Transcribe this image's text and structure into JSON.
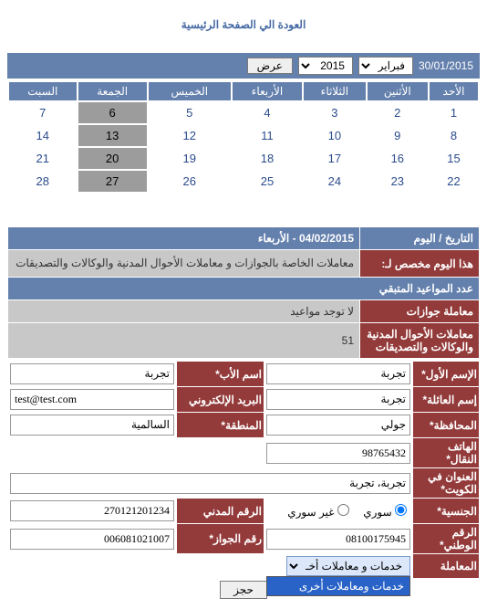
{
  "home_link": "العودة الي الصفحة الرئيسية",
  "date_bar": {
    "date": "30/01/2015",
    "month": "فبراير",
    "year": "2015",
    "show": "عرض"
  },
  "calendar": {
    "days": [
      "الأحد",
      "الأثنين",
      "الثلاثاء",
      "الأربعاء",
      "الخميس",
      "الجمعة",
      "السبت"
    ],
    "rows": [
      [
        {
          "n": "1"
        },
        {
          "n": "2"
        },
        {
          "n": "3"
        },
        {
          "n": "4"
        },
        {
          "n": "5"
        },
        {
          "n": "6",
          "hl": true
        },
        {
          "n": "7"
        }
      ],
      [
        {
          "n": "8"
        },
        {
          "n": "9"
        },
        {
          "n": "10"
        },
        {
          "n": "11"
        },
        {
          "n": "12"
        },
        {
          "n": "13",
          "hl": true
        },
        {
          "n": "14"
        }
      ],
      [
        {
          "n": "15"
        },
        {
          "n": "16"
        },
        {
          "n": "17"
        },
        {
          "n": "18"
        },
        {
          "n": "19"
        },
        {
          "n": "20",
          "hl": true
        },
        {
          "n": "21"
        }
      ],
      [
        {
          "n": "22"
        },
        {
          "n": "23"
        },
        {
          "n": "24"
        },
        {
          "n": "25"
        },
        {
          "n": "26"
        },
        {
          "n": "27",
          "hl": true
        },
        {
          "n": "28"
        }
      ]
    ]
  },
  "info": {
    "date_day_label": "التاريخ / اليوم",
    "date_day_value": "04/02/2015 - الأربعاء",
    "purpose_label": "هذا اليوم مخصص لـ:",
    "purpose_value": "معاملات الخاصة بالجوازات و معاملات الأحوال المدنية والوكالات والتصديقات",
    "remaining_label": "عدد المواعيد المتبقي",
    "passport_label": "معاملة جوازات",
    "passport_value": "لا توجد مواعيد",
    "civil_label": "معاملات الأحوال المدنية والوكالات والتصديقات",
    "civil_value": "51"
  },
  "form": {
    "first_name_label": "الإسم الأول*",
    "first_name": "تجربة",
    "father_name_label": "اسم الأب*",
    "father_name": "تجربة",
    "family_name_label": "إسم العائلة*",
    "family_name": "تجربة",
    "email_label": "البريد الإلكتروني",
    "email": "test@test.com",
    "governorate_label": "المحافظة*",
    "governorate": "جولي",
    "area_label": "المنطقة*",
    "area": "السالمية",
    "mobile_label": "الهاتف النقال*",
    "mobile": "98765432",
    "address_label": "العنوان في الكويت*",
    "address": "تجربة، تجربة",
    "nationality_label": "الجنسية*",
    "nat_syrian": "سوري",
    "nat_nonsyrian": "غير سوري",
    "civil_id_label": "الرقم المدني",
    "civil_id": "270121201234",
    "national_id_label": "الرقم الوطني*",
    "national_id": "08100175945",
    "passport_no_label": "رقم الجواز*",
    "passport_no": "006081021007",
    "transaction_label": "المعاملة",
    "transaction_selected": "خدمات و معاملات أخـ",
    "transaction_option": "خدمات ومعاملات أخرى",
    "submit": "حجز"
  },
  "colors": {
    "header": "#6480ad",
    "label": "#933a3a",
    "body": "#c8c8c8",
    "link": "#466aa4",
    "highlight": "#9c9c9c"
  }
}
